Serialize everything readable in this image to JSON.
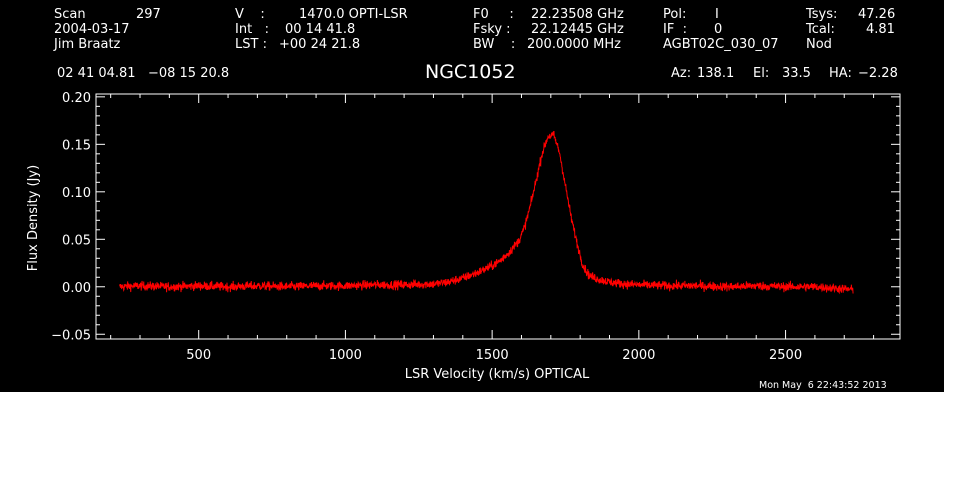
{
  "header": {
    "scan_label": "Scan",
    "scan_value": "297",
    "date": "2004-03-17",
    "observer": "Jim Braatz",
    "v_label": "V    :",
    "v_value": "1470.0 OPTI-LSR",
    "int_label": "Int   :",
    "int_value": "00 14 41.8",
    "lst_label": "LST :",
    "lst_value": "+00 24 21.8",
    "f0_label": "F0     :",
    "f0_value": "22.23508 GHz",
    "fsky_label": "Fsky :",
    "fsky_value": "22.12445 GHz",
    "bw_label": "BW    :",
    "bw_value": "200.0000 MHz",
    "pol_label": "Pol:",
    "pol_value": "I",
    "if_label": "IF  :",
    "if_value": "0",
    "project": "AGBT02C_030_07",
    "tsys_label": "Tsys:",
    "tsys_value": "47.26",
    "tcal_label": "Tcal:",
    "tcal_value": "4.81",
    "mode": "Nod",
    "coords": "02 41 04.81   −08 15 20.8",
    "object": "NGC1052",
    "az_label": "Az:",
    "az_value": "138.1",
    "el_label": "El:",
    "el_value": "33.5",
    "ha_label": "HA:",
    "ha_value": "−2.28"
  },
  "timestamp": "Mon May  6 22:43:52 2013",
  "colors": {
    "background": "#000000",
    "axes": "#ffffff",
    "trace": "#ff0000"
  },
  "chart_data": {
    "type": "line",
    "xlabel": "LSR Velocity (km/s) OPTICAL",
    "ylabel": "Flux Density (Jy)",
    "xlim": [
      150,
      2890
    ],
    "ylim": [
      -0.055,
      0.203
    ],
    "xticks": [
      500,
      1000,
      1500,
      2000,
      2500
    ],
    "xtick_labels": [
      "500",
      "1000",
      "1500",
      "2000",
      "2500"
    ],
    "yticks": [
      -0.05,
      0.0,
      0.05,
      0.1,
      0.15,
      0.2
    ],
    "ytick_labels": [
      "−0.05",
      "0.00",
      "0.05",
      "0.10",
      "0.15",
      "0.20"
    ],
    "grid": false,
    "series": [
      {
        "x": [
          230,
          300,
          400,
          500,
          600,
          700,
          800,
          900,
          1000,
          1100,
          1200,
          1300,
          1350,
          1400,
          1450,
          1500,
          1530,
          1560,
          1590,
          1610,
          1630,
          1650,
          1670,
          1690,
          1710,
          1730,
          1750,
          1770,
          1790,
          1810,
          1830,
          1860,
          1900,
          1950,
          2000,
          2100,
          2200,
          2300,
          2400,
          2500,
          2600,
          2730
        ],
        "y": [
          0.0,
          0.001,
          0.0,
          0.001,
          0.0,
          0.001,
          0.0,
          0.001,
          0.001,
          0.002,
          0.002,
          0.003,
          0.005,
          0.009,
          0.015,
          0.022,
          0.028,
          0.037,
          0.048,
          0.062,
          0.085,
          0.112,
          0.14,
          0.158,
          0.16,
          0.141,
          0.106,
          0.072,
          0.045,
          0.022,
          0.012,
          0.008,
          0.005,
          0.003,
          0.002,
          0.001,
          0.001,
          0.0,
          0.001,
          0.0,
          0.0,
          -0.003
        ]
      }
    ]
  }
}
